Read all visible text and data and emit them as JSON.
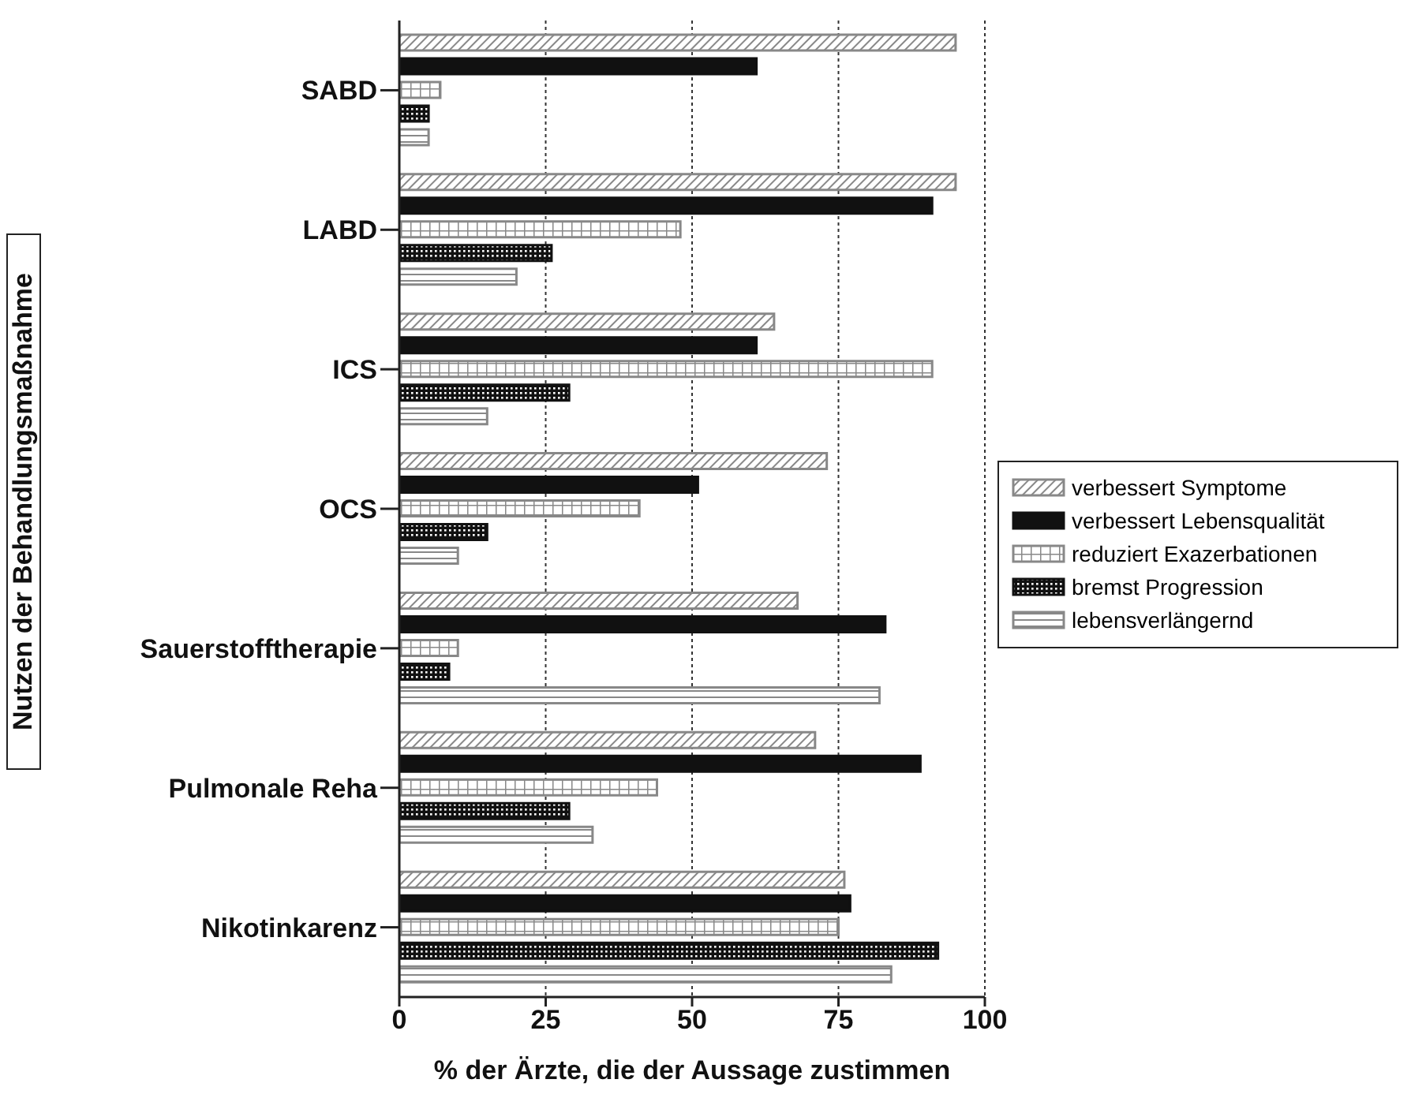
{
  "chart_data": {
    "type": "bar",
    "orientation": "horizontal",
    "xlabel": "% der Ärzte, die der Aussage zustimmen",
    "ylabel": "Nutzen der Behandlungsmaßnahme",
    "categories": [
      "SABD",
      "LABD",
      "ICS",
      "OCS",
      "Sauerstofftherapie",
      "Pulmonale Reha",
      "Nikotinkarenz"
    ],
    "series": [
      {
        "name": "verbessert Symptome",
        "color": "#888888",
        "values": [
          95,
          95,
          64,
          73,
          68,
          71,
          76
        ]
      },
      {
        "name": "verbessert Lebensqualität",
        "color": "#111111",
        "values": [
          61,
          91,
          61,
          51,
          83,
          89,
          77
        ]
      },
      {
        "name": "reduziert Exazerbationen",
        "color": "#888888",
        "values": [
          7,
          48,
          91,
          41,
          10,
          44,
          75
        ]
      },
      {
        "name": "bremst Progression",
        "color": "#111111",
        "values": [
          5,
          26,
          29,
          15,
          8.5,
          29,
          92
        ]
      },
      {
        "name": "lebensverlängernd",
        "color": "#888888",
        "values": [
          5,
          20,
          15,
          10,
          82,
          33,
          84
        ]
      }
    ],
    "xlim": [
      0,
      100
    ],
    "xticks": [
      0,
      25,
      50,
      75,
      100
    ],
    "grid": "x",
    "legend": "right"
  }
}
